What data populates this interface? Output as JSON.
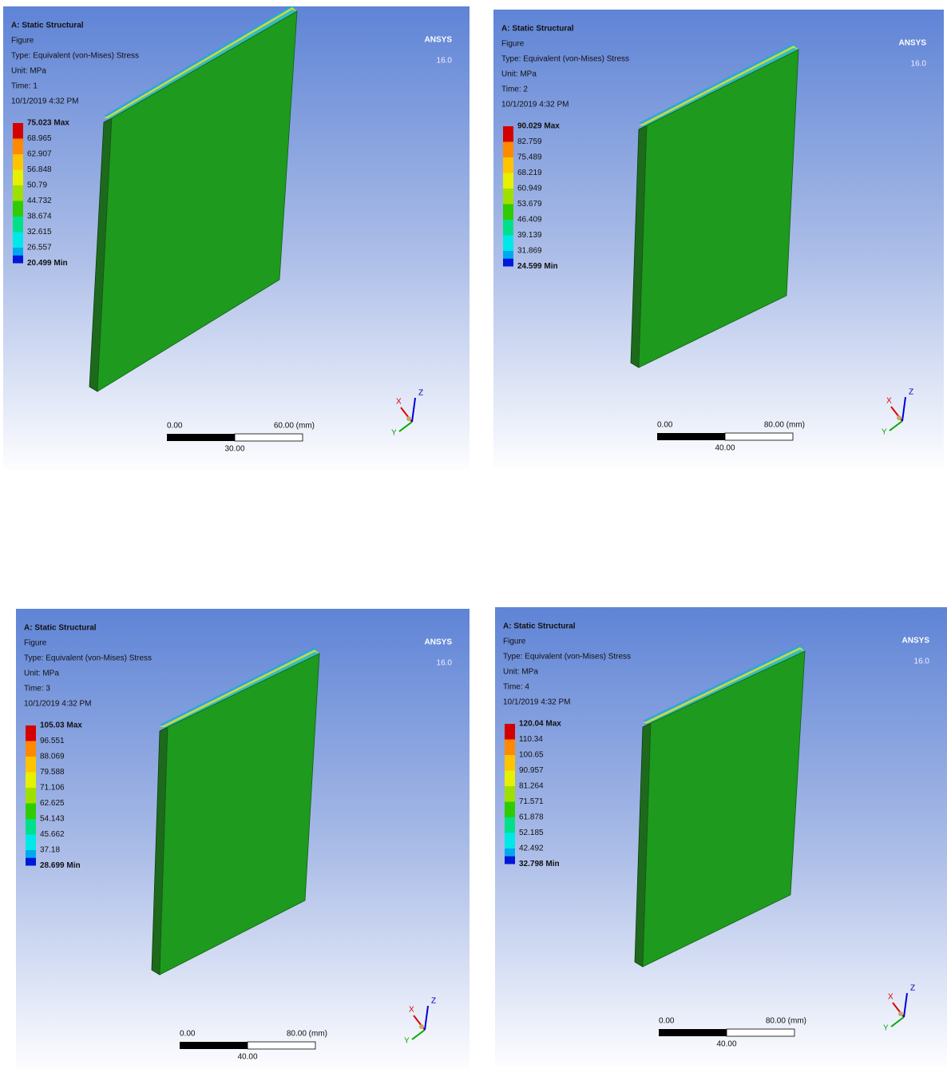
{
  "panels": [
    {
      "header": [
        "A: Static Structural",
        "Figure",
        "Type: Equivalent (von-Mises) Stress",
        "Unit: MPa",
        "Time: 1",
        "10/1/2019 4:32 PM"
      ],
      "legend": [
        "75.023 Max",
        "68.965",
        "62.907",
        "56.848",
        "50.79",
        "44.732",
        "38.674",
        "32.615",
        "26.557",
        "20.499 Min"
      ],
      "logo": "ANSYS",
      "version": "16.0",
      "scale": {
        "start": "0.00",
        "end": "60.00 (mm)",
        "mid": "30.00"
      },
      "axes": [
        "X",
        "Y",
        "Z"
      ]
    },
    {
      "header": [
        "A: Static Structural",
        "Figure",
        "Type: Equivalent (von-Mises) Stress",
        "Unit: MPa",
        "Time: 2",
        "10/1/2019 4:32 PM"
      ],
      "legend": [
        "90.029 Max",
        "82.759",
        "75.489",
        "68.219",
        "60.949",
        "53.679",
        "46.409",
        "39.139",
        "31.869",
        "24.599 Min"
      ],
      "logo": "ANSYS",
      "version": "16.0",
      "scale": {
        "start": "0.00",
        "end": "80.00 (mm)",
        "mid": "40.00"
      },
      "axes": [
        "X",
        "Y",
        "Z"
      ]
    },
    {
      "header": [
        "A: Static Structural",
        "Figure",
        "Type: Equivalent (von-Mises) Stress",
        "Unit: MPa",
        "Time: 3",
        "10/1/2019 4:32 PM"
      ],
      "legend": [
        "105.03 Max",
        "96.551",
        "88.069",
        "79.588",
        "71.106",
        "62.625",
        "54.143",
        "45.662",
        "37.18",
        "28.699 Min"
      ],
      "logo": "ANSYS",
      "version": "16.0",
      "scale": {
        "start": "0.00",
        "end": "80.00 (mm)",
        "mid": "40.00"
      },
      "axes": [
        "X",
        "Y",
        "Z"
      ]
    },
    {
      "header": [
        "A: Static Structural",
        "Figure",
        "Type: Equivalent (von-Mises) Stress",
        "Unit: MPa",
        "Time: 4",
        "10/1/2019 4:32 PM"
      ],
      "legend": [
        "120.04 Max",
        "110.34",
        "100.65",
        "90.957",
        "81.264",
        "71.571",
        "61.878",
        "52.185",
        "42.492",
        "32.798 Min"
      ],
      "logo": "ANSYS",
      "version": "16.0",
      "scale": {
        "start": "0.00",
        "end": "80.00 (mm)",
        "mid": "40.00"
      },
      "axes": [
        "X",
        "Y",
        "Z"
      ]
    }
  ]
}
